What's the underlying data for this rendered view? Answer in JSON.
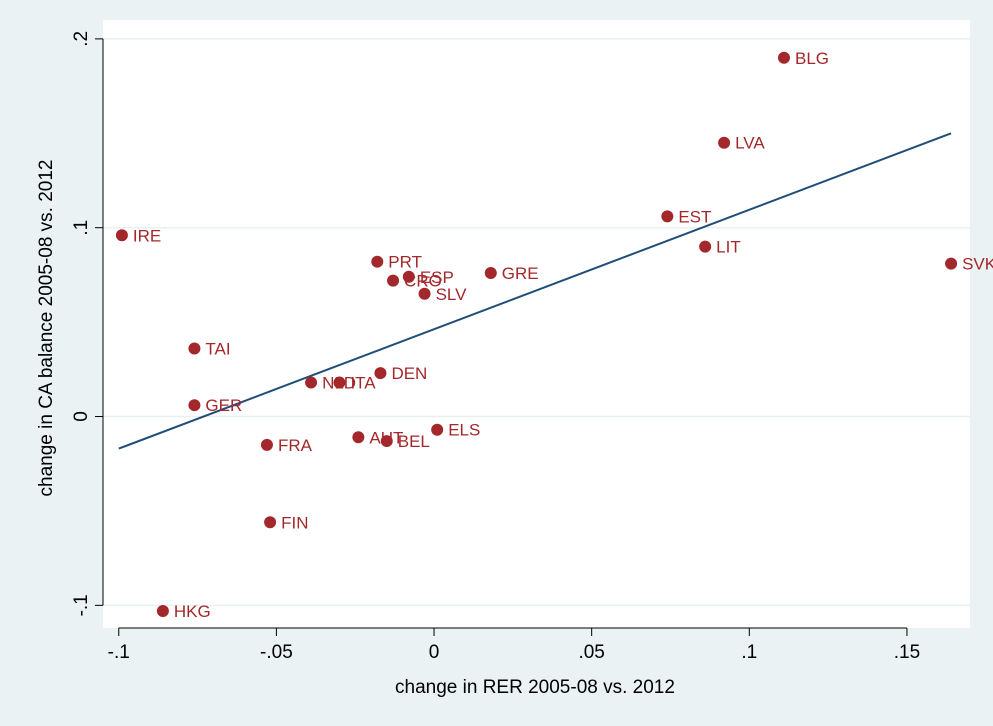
{
  "chart_data": {
    "type": "scatter",
    "title": "",
    "xlabel": "change in RER 2005-08 vs. 2012",
    "ylabel": "change in CA balance 2005-08 vs. 2012",
    "xlim": [
      -0.105,
      0.17
    ],
    "ylim": [
      -0.112,
      0.21
    ],
    "x_ticks": [
      -0.1,
      -0.05,
      0,
      0.05,
      0.1,
      0.15
    ],
    "x_tick_labels": [
      "-.1",
      "-.05",
      "0",
      ".05",
      ".1",
      ".15"
    ],
    "y_ticks": [
      -0.1,
      0,
      0.1,
      0.2
    ],
    "y_tick_labels": [
      "-.1",
      "0",
      ".1",
      ".2"
    ],
    "grid": true,
    "points": [
      {
        "label": "BLG",
        "x": 0.111,
        "y": 0.19
      },
      {
        "label": "LVA",
        "x": 0.092,
        "y": 0.145
      },
      {
        "label": "EST",
        "x": 0.074,
        "y": 0.106
      },
      {
        "label": "LIT",
        "x": 0.086,
        "y": 0.09
      },
      {
        "label": "SVK",
        "x": 0.164,
        "y": 0.081
      },
      {
        "label": "IRE",
        "x": -0.099,
        "y": 0.096
      },
      {
        "label": "PRT",
        "x": -0.018,
        "y": 0.082
      },
      {
        "label": "ESP",
        "x": -0.008,
        "y": 0.074
      },
      {
        "label": "CRO",
        "x": -0.013,
        "y": 0.072
      },
      {
        "label": "SLV",
        "x": -0.003,
        "y": 0.065
      },
      {
        "label": "GRE",
        "x": 0.018,
        "y": 0.076
      },
      {
        "label": "TAI",
        "x": -0.076,
        "y": 0.036
      },
      {
        "label": "DEN",
        "x": -0.017,
        "y": 0.023
      },
      {
        "label": "NLD",
        "x": -0.039,
        "y": 0.018
      },
      {
        "label": "ITA",
        "x": -0.03,
        "y": 0.018
      },
      {
        "label": "GER",
        "x": -0.076,
        "y": 0.006
      },
      {
        "label": "ELS",
        "x": 0.001,
        "y": -0.007
      },
      {
        "label": "AUT",
        "x": -0.024,
        "y": -0.011
      },
      {
        "label": "BEL",
        "x": -0.015,
        "y": -0.013
      },
      {
        "label": "FRA",
        "x": -0.053,
        "y": -0.015
      },
      {
        "label": "FIN",
        "x": -0.052,
        "y": -0.056
      },
      {
        "label": "HKG",
        "x": -0.086,
        "y": -0.103
      }
    ],
    "fit_line": {
      "x": [
        -0.1,
        0.164
      ],
      "y": [
        -0.017,
        0.15
      ]
    },
    "colors": {
      "marker": "#a3282b",
      "label": "#a3282b",
      "fit_line": "#1f4e79",
      "outer_background": "#eaf2f3",
      "plot_background": "#ffffff",
      "grid": "#e8f0f0",
      "axis": "#000000"
    }
  }
}
